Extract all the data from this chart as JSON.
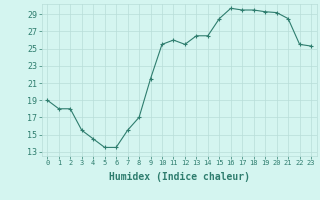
{
  "x": [
    0,
    1,
    2,
    3,
    4,
    5,
    6,
    7,
    8,
    9,
    10,
    11,
    12,
    13,
    14,
    15,
    16,
    17,
    18,
    19,
    20,
    21,
    22,
    23
  ],
  "y": [
    19,
    18,
    18,
    15.5,
    14.5,
    13.5,
    13.5,
    15.5,
    17,
    21.5,
    25.5,
    26,
    25.5,
    26.5,
    26.5,
    28.5,
    29.7,
    29.5,
    29.5,
    29.3,
    29.2,
    28.5,
    25.5,
    25.3
  ],
  "xlabel": "Humidex (Indice chaleur)",
  "line_color": "#2e7d6e",
  "bg_color": "#d4f5f0",
  "grid_color": "#b8ddd8",
  "text_color": "#2e7d6e",
  "yticks": [
    13,
    15,
    17,
    19,
    21,
    23,
    25,
    27,
    29
  ],
  "xticks": [
    0,
    1,
    2,
    3,
    4,
    5,
    6,
    7,
    8,
    9,
    10,
    11,
    12,
    13,
    14,
    15,
    16,
    17,
    18,
    19,
    20,
    21,
    22,
    23
  ]
}
